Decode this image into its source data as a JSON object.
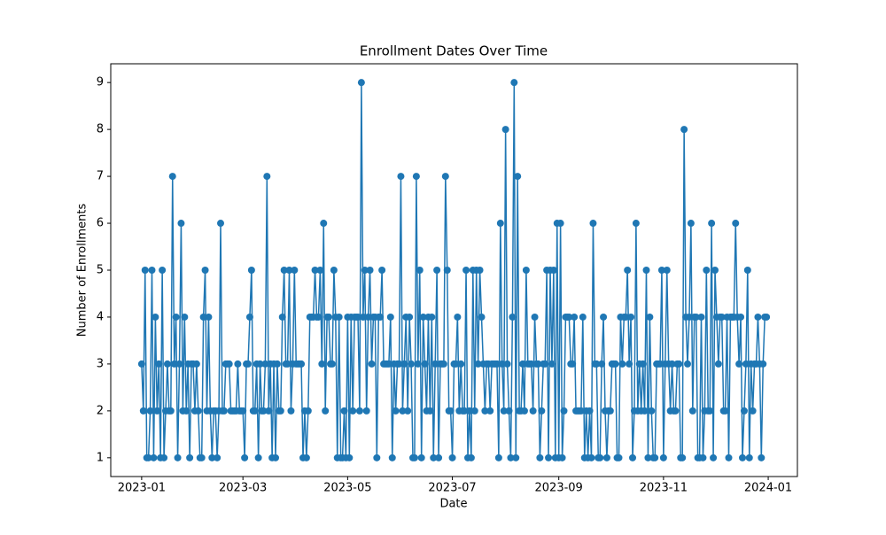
{
  "chart_data": {
    "type": "line",
    "title": "Enrollment Dates Over Time",
    "xlabel": "Date",
    "ylabel": "Number of Enrollments",
    "color": "#1f77b4",
    "marker": "o",
    "x": [
      "2023-01-01",
      "2023-01-02",
      "2023-01-03",
      "2023-01-04",
      "2023-01-05",
      "2023-01-06",
      "2023-01-07",
      "2023-01-08",
      "2023-01-09",
      "2023-01-10",
      "2023-01-11",
      "2023-01-12",
      "2023-01-13",
      "2023-01-14",
      "2023-01-15",
      "2023-01-16",
      "2023-01-17",
      "2023-01-18",
      "2023-01-19",
      "2023-01-20",
      "2023-01-21",
      "2023-01-22",
      "2023-01-23",
      "2023-01-24",
      "2023-01-25",
      "2023-01-26",
      "2023-01-27",
      "2023-01-28",
      "2023-01-29",
      "2023-01-30",
      "2023-01-31",
      "2023-02-01",
      "2023-02-02",
      "2023-02-03",
      "2023-02-04",
      "2023-02-05",
      "2023-02-06",
      "2023-02-07",
      "2023-02-08",
      "2023-02-09",
      "2023-02-10",
      "2023-02-11",
      "2023-02-12",
      "2023-02-13",
      "2023-02-14",
      "2023-02-15",
      "2023-02-16",
      "2023-02-17",
      "2023-02-18",
      "2023-02-19",
      "2023-02-20",
      "2023-02-21",
      "2023-02-22",
      "2023-02-23",
      "2023-02-24",
      "2023-02-25",
      "2023-02-26",
      "2023-02-27",
      "2023-02-28",
      "2023-03-01",
      "2023-03-02",
      "2023-03-03",
      "2023-03-04",
      "2023-03-05",
      "2023-03-06",
      "2023-03-07",
      "2023-03-08",
      "2023-03-09",
      "2023-03-10",
      "2023-03-11",
      "2023-03-12",
      "2023-03-13",
      "2023-03-14",
      "2023-03-15",
      "2023-03-16",
      "2023-03-17",
      "2023-03-18",
      "2023-03-19",
      "2023-03-20",
      "2023-03-21",
      "2023-03-22",
      "2023-03-23",
      "2023-03-24",
      "2023-03-25",
      "2023-03-26",
      "2023-03-27",
      "2023-03-28",
      "2023-03-29",
      "2023-03-30",
      "2023-03-31",
      "2023-04-01",
      "2023-04-02",
      "2023-04-03",
      "2023-04-04",
      "2023-04-05",
      "2023-04-06",
      "2023-04-07",
      "2023-04-08",
      "2023-04-09",
      "2023-04-10",
      "2023-04-11",
      "2023-04-12",
      "2023-04-13",
      "2023-04-14",
      "2023-04-15",
      "2023-04-16",
      "2023-04-17",
      "2023-04-18",
      "2023-04-19",
      "2023-04-20",
      "2023-04-21",
      "2023-04-22",
      "2023-04-23",
      "2023-04-24",
      "2023-04-25",
      "2023-04-26",
      "2023-04-27",
      "2023-04-28",
      "2023-04-29",
      "2023-04-30",
      "2023-05-01",
      "2023-05-02",
      "2023-05-03",
      "2023-05-04",
      "2023-05-05",
      "2023-05-06",
      "2023-05-07",
      "2023-05-08",
      "2023-05-09",
      "2023-05-10",
      "2023-05-11",
      "2023-05-12",
      "2023-05-13",
      "2023-05-14",
      "2023-05-15",
      "2023-05-16",
      "2023-05-17",
      "2023-05-18",
      "2023-05-19",
      "2023-05-20",
      "2023-05-21",
      "2023-05-22",
      "2023-05-23",
      "2023-05-24",
      "2023-05-25",
      "2023-05-26",
      "2023-05-27",
      "2023-05-28",
      "2023-05-29",
      "2023-05-30",
      "2023-05-31",
      "2023-06-01",
      "2023-06-02",
      "2023-06-03",
      "2023-06-04",
      "2023-06-05",
      "2023-06-06",
      "2023-06-07",
      "2023-06-08",
      "2023-06-09",
      "2023-06-10",
      "2023-06-11",
      "2023-06-12",
      "2023-06-13",
      "2023-06-14",
      "2023-06-15",
      "2023-06-16",
      "2023-06-17",
      "2023-06-18",
      "2023-06-19",
      "2023-06-20",
      "2023-06-21",
      "2023-06-22",
      "2023-06-23",
      "2023-06-24",
      "2023-06-25",
      "2023-06-26",
      "2023-06-27",
      "2023-06-28",
      "2023-06-29",
      "2023-06-30",
      "2023-07-01",
      "2023-07-02",
      "2023-07-03",
      "2023-07-04",
      "2023-07-05",
      "2023-07-06",
      "2023-07-07",
      "2023-07-08",
      "2023-07-09",
      "2023-07-10",
      "2023-07-11",
      "2023-07-12",
      "2023-07-13",
      "2023-07-14",
      "2023-07-15",
      "2023-07-16",
      "2023-07-17",
      "2023-07-18",
      "2023-07-19",
      "2023-07-20",
      "2023-07-21",
      "2023-07-22",
      "2023-07-23",
      "2023-07-24",
      "2023-07-25",
      "2023-07-26",
      "2023-07-27",
      "2023-07-28",
      "2023-07-29",
      "2023-07-30",
      "2023-07-31",
      "2023-08-01",
      "2023-08-02",
      "2023-08-03",
      "2023-08-04",
      "2023-08-05",
      "2023-08-06",
      "2023-08-07",
      "2023-08-08",
      "2023-08-09",
      "2023-08-10",
      "2023-08-11",
      "2023-08-12",
      "2023-08-13",
      "2023-08-14",
      "2023-08-15",
      "2023-08-16",
      "2023-08-17",
      "2023-08-18",
      "2023-08-19",
      "2023-08-20",
      "2023-08-21",
      "2023-08-22",
      "2023-08-23",
      "2023-08-24",
      "2023-08-25",
      "2023-08-26",
      "2023-08-27",
      "2023-08-28",
      "2023-08-29",
      "2023-08-30",
      "2023-08-31",
      "2023-09-01",
      "2023-09-02",
      "2023-09-03",
      "2023-09-04",
      "2023-09-05",
      "2023-09-06",
      "2023-09-07",
      "2023-09-08",
      "2023-09-09",
      "2023-09-10",
      "2023-09-11",
      "2023-09-12",
      "2023-09-13",
      "2023-09-14",
      "2023-09-15",
      "2023-09-16",
      "2023-09-17",
      "2023-09-18",
      "2023-09-19",
      "2023-09-20",
      "2023-09-21",
      "2023-09-22",
      "2023-09-23",
      "2023-09-24",
      "2023-09-25",
      "2023-09-26",
      "2023-09-27",
      "2023-09-28",
      "2023-09-29",
      "2023-09-30",
      "2023-10-01",
      "2023-10-02",
      "2023-10-03",
      "2023-10-04",
      "2023-10-05",
      "2023-10-06",
      "2023-10-07",
      "2023-10-08",
      "2023-10-09",
      "2023-10-10",
      "2023-10-11",
      "2023-10-12",
      "2023-10-13",
      "2023-10-14",
      "2023-10-15",
      "2023-10-16",
      "2023-10-17",
      "2023-10-18",
      "2023-10-19",
      "2023-10-20",
      "2023-10-21",
      "2023-10-22",
      "2023-10-23",
      "2023-10-24",
      "2023-10-25",
      "2023-10-26",
      "2023-10-27",
      "2023-10-28",
      "2023-10-29",
      "2023-10-30",
      "2023-10-31",
      "2023-11-01",
      "2023-11-02",
      "2023-11-03",
      "2023-11-04",
      "2023-11-05",
      "2023-11-06",
      "2023-11-07",
      "2023-11-08",
      "2023-11-09",
      "2023-11-10",
      "2023-11-11",
      "2023-11-12",
      "2023-11-13",
      "2023-11-14",
      "2023-11-15",
      "2023-11-16",
      "2023-11-17",
      "2023-11-18",
      "2023-11-19",
      "2023-11-20",
      "2023-11-21",
      "2023-11-22",
      "2023-11-23",
      "2023-11-24",
      "2023-11-25",
      "2023-11-26",
      "2023-11-27",
      "2023-11-28",
      "2023-11-29",
      "2023-11-30",
      "2023-12-01",
      "2023-12-02",
      "2023-12-03",
      "2023-12-04",
      "2023-12-05",
      "2023-12-06",
      "2023-12-07",
      "2023-12-08",
      "2023-12-09",
      "2023-12-10",
      "2023-12-11",
      "2023-12-12",
      "2023-12-13",
      "2023-12-14",
      "2023-12-15",
      "2023-12-16",
      "2023-12-17",
      "2023-12-18",
      "2023-12-19",
      "2023-12-20",
      "2023-12-21",
      "2023-12-22",
      "2023-12-23",
      "2023-12-24",
      "2023-12-25",
      "2023-12-26",
      "2023-12-27",
      "2023-12-28",
      "2023-12-29",
      "2023-12-30",
      "2023-12-31"
    ],
    "values": [
      3,
      2,
      5,
      1,
      1,
      2,
      5,
      1,
      4,
      2,
      3,
      1,
      5,
      1,
      2,
      3,
      2,
      2,
      7,
      3,
      4,
      1,
      3,
      6,
      2,
      4,
      2,
      3,
      1,
      3,
      3,
      2,
      3,
      2,
      1,
      1,
      4,
      5,
      2,
      4,
      2,
      1,
      2,
      2,
      1,
      2,
      6,
      2,
      2,
      3,
      3,
      3,
      2,
      2,
      2,
      2,
      3,
      2,
      2,
      2,
      1,
      3,
      3,
      4,
      5,
      2,
      2,
      3,
      1,
      3,
      2,
      2,
      3,
      7,
      2,
      3,
      1,
      3,
      1,
      3,
      2,
      2,
      4,
      5,
      3,
      3,
      5,
      2,
      3,
      5,
      3,
      3,
      3,
      3,
      1,
      2,
      1,
      2,
      4,
      4,
      4,
      5,
      4,
      4,
      5,
      3,
      6,
      2,
      4,
      4,
      3,
      3,
      5,
      4,
      1,
      4,
      1,
      1,
      2,
      1,
      4,
      1,
      4,
      2,
      4,
      4,
      4,
      2,
      9,
      4,
      5,
      2,
      4,
      5,
      3,
      4,
      4,
      1,
      4,
      4,
      5,
      3,
      3,
      3,
      3,
      4,
      1,
      3,
      2,
      3,
      3,
      7,
      2,
      3,
      4,
      2,
      4,
      3,
      1,
      1,
      7,
      3,
      5,
      1,
      4,
      3,
      2,
      4,
      2,
      4,
      1,
      3,
      5,
      1,
      3,
      3,
      3,
      7,
      5,
      2,
      2,
      1,
      3,
      3,
      4,
      2,
      3,
      2,
      2,
      5,
      1,
      2,
      1,
      5,
      2,
      5,
      3,
      5,
      4,
      3,
      2,
      3,
      3,
      2,
      3,
      3,
      3,
      3,
      1,
      6,
      3,
      2,
      8,
      3,
      2,
      1,
      4,
      9,
      1,
      7,
      2,
      2,
      3,
      2,
      5,
      3,
      3,
      3,
      2,
      4,
      3,
      3,
      1,
      2,
      3,
      3,
      5,
      1,
      5,
      3,
      5,
      1,
      6,
      1,
      6,
      1,
      2,
      4,
      4,
      4,
      3,
      3,
      4,
      2,
      2,
      2,
      2,
      4,
      1,
      2,
      1,
      2,
      1,
      6,
      3,
      3,
      1,
      1,
      3,
      4,
      2,
      1,
      2,
      2,
      3,
      3,
      3,
      1,
      1,
      4,
      3,
      4,
      4,
      5,
      3,
      4,
      1,
      2,
      6,
      2,
      3,
      2,
      3,
      2,
      5,
      1,
      4,
      2,
      1,
      1,
      3,
      3,
      3,
      5,
      1,
      3,
      5,
      3,
      2,
      3,
      2,
      2,
      3,
      3,
      1,
      1,
      8,
      4,
      3,
      4,
      6,
      2,
      4,
      4,
      1,
      1,
      4,
      1,
      2,
      5,
      2,
      2,
      6,
      1,
      5,
      4,
      3,
      4,
      4,
      2,
      2,
      4,
      1,
      4,
      4,
      4,
      6,
      4,
      3,
      4,
      1,
      2,
      3,
      5,
      1,
      3,
      2,
      3,
      3,
      4,
      3,
      1,
      3,
      4,
      4
    ],
    "xlim": [
      "2022-12-14",
      "2024-01-18"
    ],
    "xticks": [
      {
        "value": "2023-01-01",
        "label": "2023-01"
      },
      {
        "value": "2023-03-01",
        "label": "2023-03"
      },
      {
        "value": "2023-05-01",
        "label": "2023-05"
      },
      {
        "value": "2023-07-01",
        "label": "2023-07"
      },
      {
        "value": "2023-09-01",
        "label": "2023-09"
      },
      {
        "value": "2023-11-01",
        "label": "2023-11"
      },
      {
        "value": "2024-01-01",
        "label": "2024-01"
      }
    ],
    "ylim": [
      0.6,
      9.4
    ],
    "yticks": [
      1,
      2,
      3,
      4,
      5,
      6,
      7,
      8,
      9
    ],
    "grid": false
  }
}
